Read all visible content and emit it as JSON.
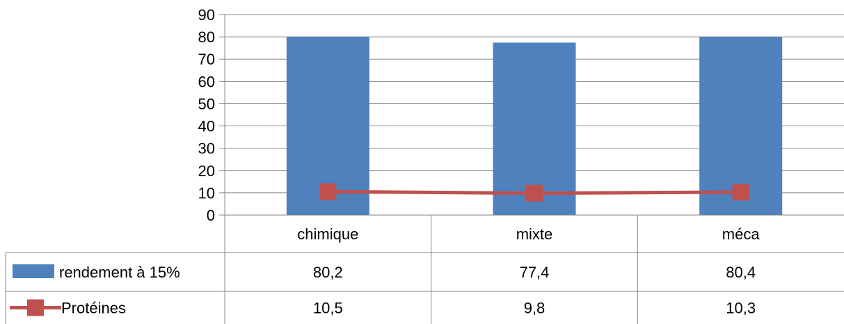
{
  "chart_data": {
    "type": "bar",
    "categories": [
      "chimique",
      "mixte",
      "méca"
    ],
    "series": [
      {
        "name": "rendement à 15%",
        "type": "bar",
        "color": "#4F81BD",
        "values": [
          80.2,
          77.4,
          80.4
        ],
        "labels": [
          "80,2",
          "77,4",
          "80,4"
        ]
      },
      {
        "name": "Protéines",
        "type": "line",
        "color": "#C0504D",
        "values": [
          10.5,
          9.8,
          10.3
        ],
        "labels": [
          "10,5",
          "9,8",
          "10,3"
        ]
      }
    ],
    "ylim": [
      0,
      90
    ],
    "yticks": [
      0,
      10,
      20,
      30,
      40,
      50,
      60,
      70,
      80,
      90
    ],
    "ymax_display": 80,
    "grid": true,
    "legend": "data-table"
  }
}
